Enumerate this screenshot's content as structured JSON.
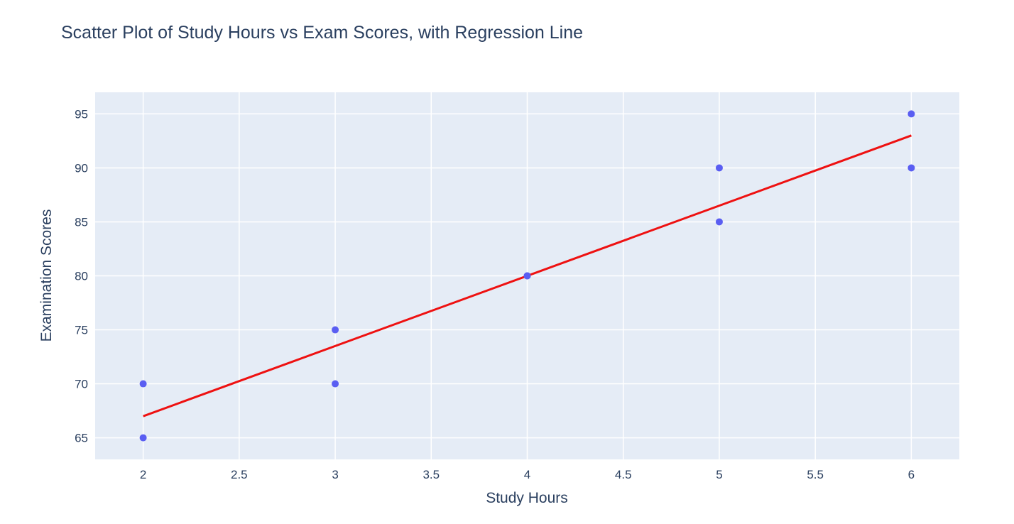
{
  "chart_data": {
    "type": "scatter",
    "title": "Scatter Plot of Study Hours vs Exam Scores, with Regression Line",
    "xlabel": "Study Hours",
    "ylabel": "Examination Scores",
    "xlim": [
      1.75,
      6.25
    ],
    "ylim": [
      63,
      97
    ],
    "x_ticks": [
      2,
      2.5,
      3,
      3.5,
      4,
      4.5,
      5,
      5.5,
      6
    ],
    "y_ticks": [
      65,
      70,
      75,
      80,
      85,
      90,
      95
    ],
    "grid": true,
    "legend": "none",
    "series": [
      {
        "type": "scatter",
        "color": "#5a5ef2",
        "points": [
          {
            "x": 2,
            "y": 65
          },
          {
            "x": 2,
            "y": 70
          },
          {
            "x": 3,
            "y": 70
          },
          {
            "x": 3,
            "y": 75
          },
          {
            "x": 4,
            "y": 80
          },
          {
            "x": 4,
            "y": 80
          },
          {
            "x": 5,
            "y": 85
          },
          {
            "x": 5,
            "y": 90
          },
          {
            "x": 6,
            "y": 90
          },
          {
            "x": 6,
            "y": 95
          }
        ]
      },
      {
        "type": "line",
        "color": "#ee1111",
        "points": [
          {
            "x": 2,
            "y": 67
          },
          {
            "x": 6,
            "y": 93
          }
        ]
      }
    ],
    "colors": {
      "plot_bg": "#e5ecf6",
      "text": "#2a3f5f"
    }
  }
}
